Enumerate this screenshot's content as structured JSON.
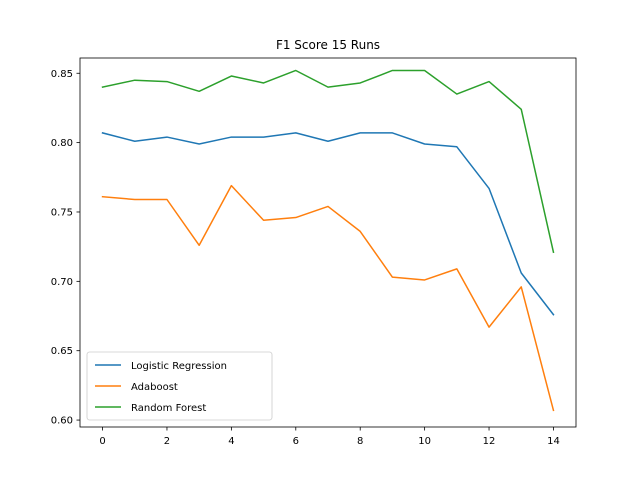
{
  "chart_data": {
    "type": "line",
    "title": "F1 Score 15 Runs",
    "xlabel": "",
    "ylabel": "",
    "x": [
      0,
      1,
      2,
      3,
      4,
      5,
      6,
      7,
      8,
      9,
      10,
      11,
      12,
      13,
      14
    ],
    "xlim": [
      -0.7,
      14.7
    ],
    "ylim": [
      0.595,
      0.861
    ],
    "xticks": [
      0,
      2,
      4,
      6,
      8,
      10,
      12,
      14
    ],
    "xtick_labels": [
      "0",
      "2",
      "4",
      "6",
      "8",
      "10",
      "12",
      "14"
    ],
    "yticks": [
      0.6,
      0.65,
      0.7,
      0.75,
      0.8,
      0.85
    ],
    "ytick_labels": [
      "0.60",
      "0.65",
      "0.70",
      "0.75",
      "0.80",
      "0.85"
    ],
    "grid": false,
    "legend_position": "lower-left",
    "series": [
      {
        "name": "Logistic Regression",
        "color": "#1f77b4",
        "values": [
          0.807,
          0.801,
          0.804,
          0.799,
          0.804,
          0.804,
          0.807,
          0.801,
          0.807,
          0.807,
          0.799,
          0.797,
          0.767,
          0.706,
          0.676
        ]
      },
      {
        "name": "Adaboost",
        "color": "#ff7f0e",
        "values": [
          0.761,
          0.759,
          0.759,
          0.726,
          0.769,
          0.744,
          0.746,
          0.754,
          0.736,
          0.703,
          0.701,
          0.709,
          0.667,
          0.696,
          0.607
        ]
      },
      {
        "name": "Random Forest",
        "color": "#2ca02c",
        "values": [
          0.84,
          0.845,
          0.844,
          0.837,
          0.848,
          0.843,
          0.852,
          0.84,
          0.843,
          0.852,
          0.852,
          0.835,
          0.844,
          0.824,
          0.721
        ]
      }
    ]
  }
}
